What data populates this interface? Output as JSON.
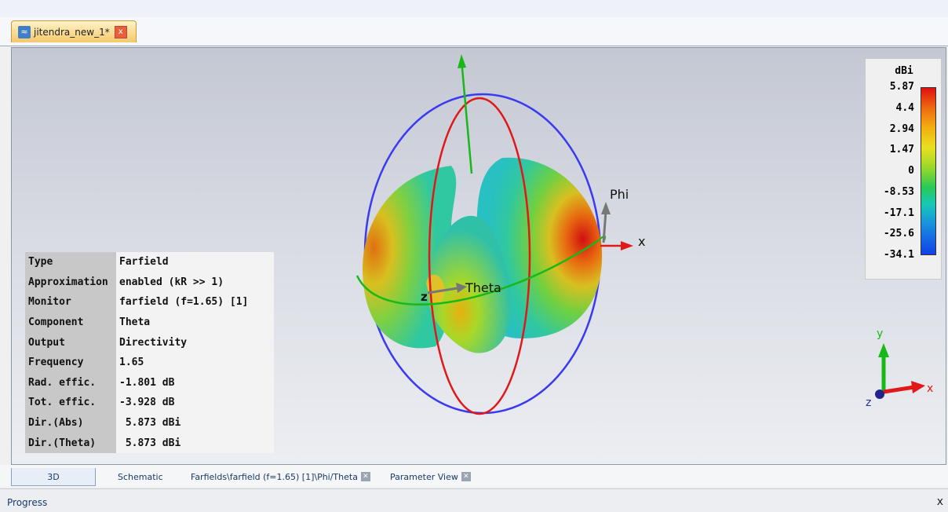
{
  "document_tab": {
    "title": "jitendra_new_1*",
    "close": "x"
  },
  "info_panel": {
    "rows": [
      {
        "key": "Type",
        "value": "Farfield"
      },
      {
        "key": "Approximation",
        "value": "enabled (kR >> 1)"
      },
      {
        "key": "Monitor",
        "value": "farfield (f=1.65) [1]"
      },
      {
        "key": "Component",
        "value": "Theta"
      },
      {
        "key": "Output",
        "value": "Directivity"
      },
      {
        "key": "Frequency",
        "value": "1.65"
      },
      {
        "key": "Rad. effic.",
        "value": "-1.801 dB"
      },
      {
        "key": "Tot. effic.",
        "value": "-3.928 dB"
      },
      {
        "key": "Dir.(Abs)",
        "value": " 5.873 dBi"
      },
      {
        "key": "Dir.(Theta)",
        "value": " 5.873 dBi"
      }
    ]
  },
  "legend": {
    "unit": "dBi",
    "labels": [
      "5.87",
      "4.4",
      "2.94",
      "1.47",
      "0",
      "-8.53",
      "-17.1",
      "-25.6",
      "-34.1"
    ]
  },
  "axes_labels": {
    "phi": "Phi",
    "theta": "Theta",
    "x": "x",
    "z": "z"
  },
  "triad_labels": {
    "x": "x",
    "y": "y",
    "z": "z"
  },
  "bottom_tabs": [
    {
      "label": "3D"
    },
    {
      "label": "Schematic"
    },
    {
      "label": "Farfields\\farfield (f=1.65) [1]\\Phi/Theta"
    },
    {
      "label": "Parameter View"
    }
  ],
  "progress": {
    "title": "Progress",
    "close": "x"
  },
  "colors": {
    "blue_circle": "#3a3af0",
    "red_circle": "#e01818",
    "green_axis": "#18b818",
    "x_axis": "#e01818"
  }
}
